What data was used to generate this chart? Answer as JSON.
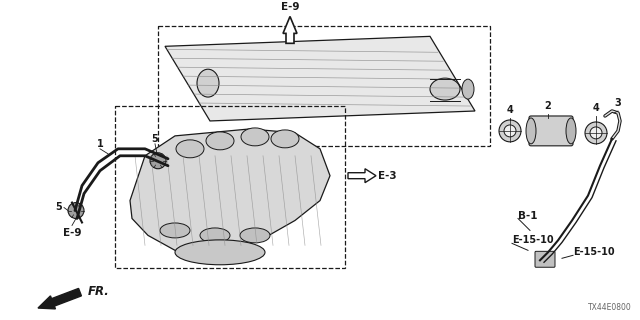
{
  "bg_color": "#ffffff",
  "dark": "#1a1a1a",
  "gray": "#888888",
  "light_gray": "#cccccc",
  "footer_code": "TX44E0800",
  "label_1": "1",
  "label_2": "2",
  "label_3": "3",
  "label_4": "4",
  "label_5": "5",
  "label_E9_top": "E-9",
  "label_E9_bot": "E-9",
  "label_E3": "E-3",
  "label_B1": "B-1",
  "label_E1510a": "E-15-10",
  "label_E1510b": "E-15-10",
  "label_FR": "FR."
}
